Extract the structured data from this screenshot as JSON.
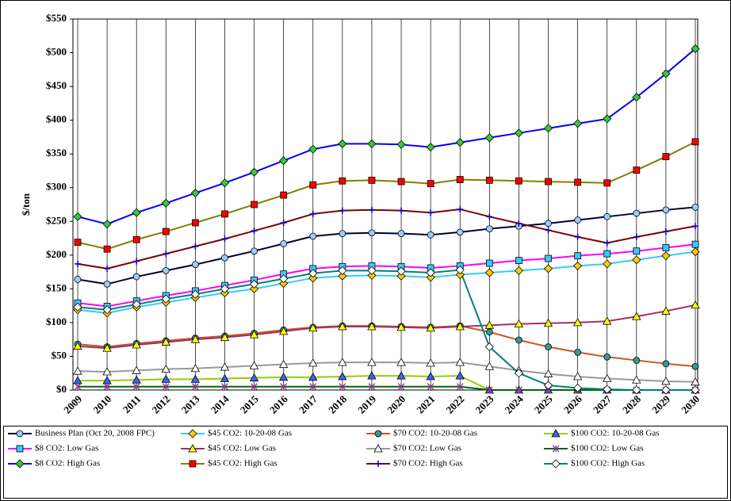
{
  "chart_data": {
    "type": "line",
    "y_label": "$/ton",
    "categories": [
      "2009",
      "2010",
      "2011",
      "2012",
      "2013",
      "2014",
      "2015",
      "2016",
      "2017",
      "2018",
      "2019",
      "2020",
      "2021",
      "2022",
      "2023",
      "2024",
      "2025",
      "2026",
      "2027",
      "2028",
      "2029",
      "2030"
    ],
    "ylim": [
      0,
      550
    ],
    "yticks": [
      {
        "value": 0,
        "label": "$0"
      },
      {
        "value": 50,
        "label": "$50"
      },
      {
        "value": 100,
        "label": "$100"
      },
      {
        "value": 150,
        "label": "$150"
      },
      {
        "value": 200,
        "label": "$200"
      },
      {
        "value": 250,
        "label": "$250"
      },
      {
        "value": 300,
        "label": "$300"
      },
      {
        "value": 350,
        "label": "$350"
      },
      {
        "value": 400,
        "label": "$400"
      },
      {
        "value": 450,
        "label": "$450"
      },
      {
        "value": 500,
        "label": "$500"
      },
      {
        "value": 550,
        "label": "$550"
      }
    ],
    "grid": "x",
    "series": [
      {
        "name": "Business Plan (Oct 20, 2008 FPC)",
        "color": "#000033",
        "marker": "circle",
        "marker_color": "#99ccff",
        "values": [
          164,
          157,
          168,
          177,
          186,
          196,
          206,
          217,
          228,
          232,
          233,
          232,
          230,
          234,
          239,
          243,
          247,
          252,
          257,
          262,
          267,
          271
        ]
      },
      {
        "name": "$45 CO2: 10-20-08 Gas",
        "color": "#33ccff",
        "marker": "diamond",
        "marker_color": "#ffcc00",
        "values": [
          119,
          114,
          123,
          130,
          137,
          144,
          150,
          158,
          166,
          169,
          170,
          169,
          167,
          171,
          174,
          177,
          180,
          184,
          187,
          193,
          199,
          205
        ]
      },
      {
        "name": "$70 CO2: 10-20-08 Gas",
        "color": "#cc5522",
        "marker": "circle",
        "marker_color": "#339999",
        "values": [
          68,
          64,
          69,
          73,
          77,
          80,
          84,
          89,
          93,
          95,
          95,
          94,
          93,
          95,
          86,
          74,
          64,
          56,
          49,
          44,
          39,
          35
        ]
      },
      {
        "name": "$100 CO2: 10-20-08 Gas",
        "color": "#99cc00",
        "marker": "triangle",
        "marker_color": "#3366ff",
        "values": [
          14,
          14,
          15,
          16,
          16,
          17,
          18,
          19,
          19,
          20,
          21,
          21,
          20,
          21,
          0,
          0,
          0,
          0,
          0,
          0,
          0,
          0
        ]
      },
      {
        "name": "$8 CO2: Low Gas",
        "color": "#ff00ff",
        "marker": "square",
        "marker_color": "#33ccff",
        "values": [
          129,
          124,
          132,
          140,
          147,
          155,
          163,
          172,
          180,
          183,
          184,
          183,
          181,
          184,
          188,
          192,
          195,
          199,
          202,
          206,
          211,
          216
        ]
      },
      {
        "name": "$45 CO2: Low Gas",
        "color": "#993366",
        "marker": "triangle",
        "marker_color": "#ffff00",
        "values": [
          65,
          62,
          67,
          71,
          75,
          78,
          82,
          87,
          92,
          94,
          94,
          93,
          92,
          94,
          96,
          98,
          99,
          100,
          102,
          109,
          117,
          126
        ]
      },
      {
        "name": "$70 CO2: Low Gas",
        "color": "#999999",
        "marker": "triangle",
        "marker_color": "#ffffff",
        "values": [
          28,
          27,
          29,
          31,
          32,
          34,
          36,
          38,
          40,
          41,
          41,
          41,
          40,
          41,
          35,
          29,
          24,
          20,
          17,
          15,
          13,
          12
        ]
      },
      {
        "name": "$100 CO2: Low Gas",
        "color": "#006600",
        "marker": "asterisk",
        "marker_color": "#993399",
        "values": [
          5,
          5,
          5,
          5,
          5,
          5,
          5,
          5,
          5,
          5,
          5,
          5,
          5,
          5,
          0,
          0,
          0,
          0,
          0,
          0,
          0,
          0
        ]
      },
      {
        "name": "$8 CO2: High Gas",
        "color": "#0000ff",
        "marker": "diamond",
        "marker_color": "#33cc33",
        "values": [
          257,
          246,
          263,
          277,
          292,
          307,
          323,
          340,
          357,
          365,
          365,
          364,
          360,
          367,
          374,
          381,
          388,
          395,
          402,
          434,
          469,
          506
        ]
      },
      {
        "name": "$45 CO2: High Gas",
        "color": "#808000",
        "marker": "square",
        "marker_color": "#ff0000",
        "values": [
          219,
          209,
          223,
          235,
          248,
          261,
          275,
          289,
          304,
          310,
          311,
          309,
          306,
          312,
          311,
          310,
          309,
          308,
          307,
          326,
          346,
          368
        ]
      },
      {
        "name": "$70 CO2: High Gas",
        "color": "#800000",
        "marker": "plus",
        "marker_color": "#0000cc",
        "values": [
          187,
          180,
          191,
          202,
          213,
          224,
          236,
          248,
          261,
          266,
          267,
          266,
          263,
          268,
          257,
          247,
          237,
          227,
          218,
          227,
          235,
          243
        ]
      },
      {
        "name": "$100 CO2: High Gas",
        "color": "#008080",
        "marker": "diamond",
        "marker_color": "#ffffff",
        "values": [
          123,
          119,
          127,
          135,
          142,
          150,
          157,
          165,
          173,
          177,
          177,
          176,
          174,
          178,
          64,
          25,
          7,
          3,
          1,
          0,
          0,
          0
        ]
      }
    ]
  }
}
